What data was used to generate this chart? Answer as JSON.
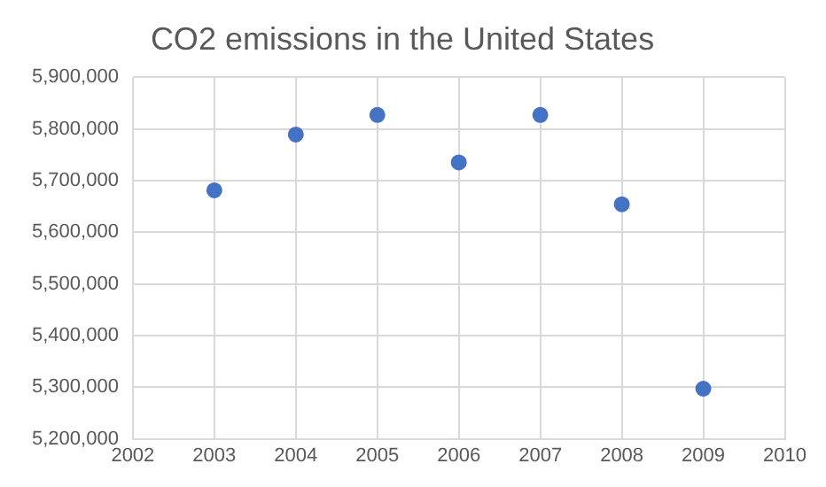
{
  "chart_data": {
    "type": "scatter",
    "title": "CO2 emissions in the United States",
    "x": [
      2003,
      2004,
      2005,
      2006,
      2007,
      2008,
      2009
    ],
    "series": [
      {
        "color": "#4472c4",
        "values": [
          5681000,
          5789000,
          5827000,
          5735000,
          5827000,
          5654000,
          5297000
        ]
      }
    ],
    "xlim": [
      2002,
      2010
    ],
    "xticks": [
      2002,
      2003,
      2004,
      2005,
      2006,
      2007,
      2008,
      2009,
      2010
    ],
    "ylim": [
      5200000,
      5900000
    ],
    "yticks": [
      {
        "value": 5200000,
        "label": "5,200,000"
      },
      {
        "value": 5300000,
        "label": "5,300,000"
      },
      {
        "value": 5400000,
        "label": "5,400,000"
      },
      {
        "value": 5500000,
        "label": "5,500,000"
      },
      {
        "value": 5600000,
        "label": "5,600,000"
      },
      {
        "value": 5700000,
        "label": "5,700,000"
      },
      {
        "value": 5800000,
        "label": "5,800,000"
      },
      {
        "value": 5900000,
        "label": "5,900,000"
      }
    ],
    "grid": true,
    "legend": false,
    "marker": "circle"
  }
}
